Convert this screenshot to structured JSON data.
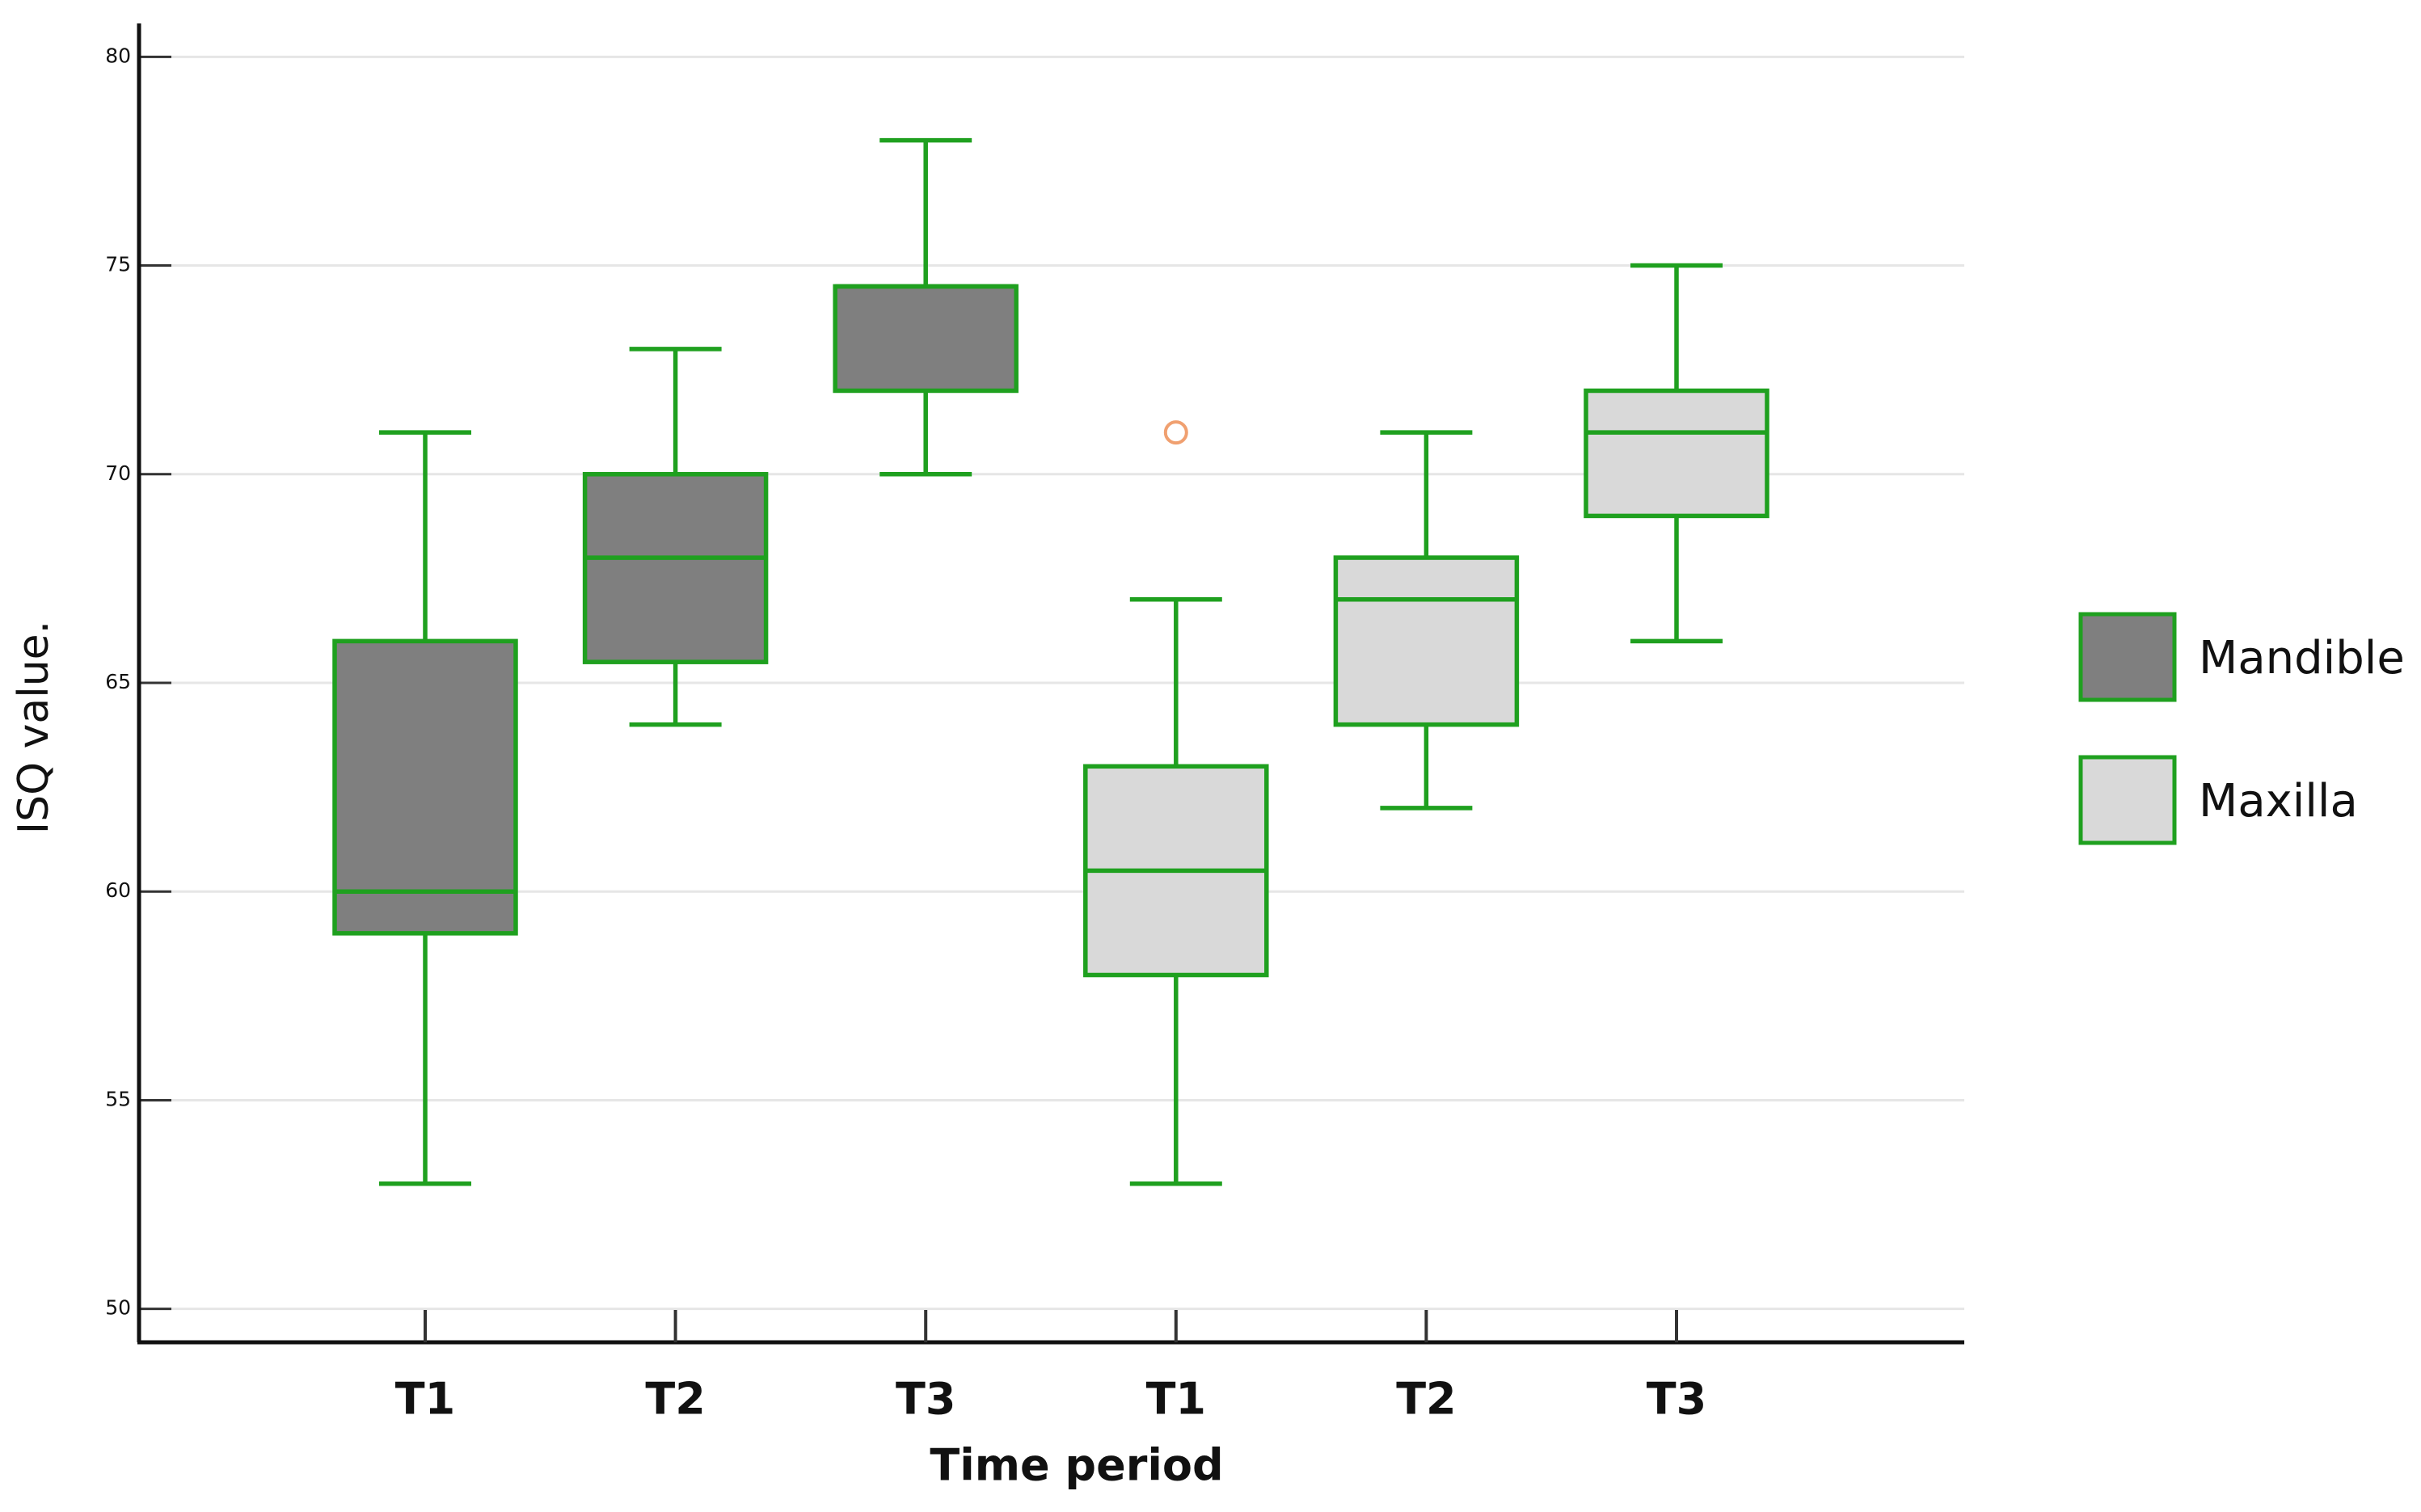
{
  "chart_data": {
    "type": "box",
    "y_label": "ISQ value.",
    "x_label": "Time period",
    "categories": [
      "T1",
      "T2",
      "T3",
      "T1",
      "T2",
      "T3"
    ],
    "series": [
      {
        "name": "Mandible",
        "color": "#7f7f7f",
        "values": [
          {
            "min": 53,
            "q1": 59,
            "median": 60,
            "q3": 66,
            "max": 71
          },
          {
            "min": 64,
            "q1": 65.5,
            "median": 68,
            "q3": 70,
            "max": 73
          },
          {
            "min": 70,
            "q1": 72,
            "median": 74.5,
            "q3": 74.5,
            "max": 78
          },
          null,
          null,
          null
        ]
      },
      {
        "name": "Maxilla",
        "color": "#d9d9d9",
        "values": [
          null,
          null,
          null,
          {
            "min": 53,
            "q1": 58,
            "median": 60.5,
            "q3": 63,
            "max": 67,
            "outliers": [
              71
            ]
          },
          {
            "min": 62,
            "q1": 64,
            "median": 67,
            "q3": 68,
            "max": 71
          },
          {
            "min": 66,
            "q1": 69,
            "median": 71,
            "q3": 72,
            "max": 75
          }
        ]
      }
    ],
    "edge_color": "#1fa01f",
    "outlier_color": "#f0a070",
    "ylim": [
      49.2,
      80.8
    ],
    "yticks": [
      50,
      55,
      60,
      65,
      70,
      75,
      80
    ],
    "grid": true,
    "legend": "right"
  }
}
